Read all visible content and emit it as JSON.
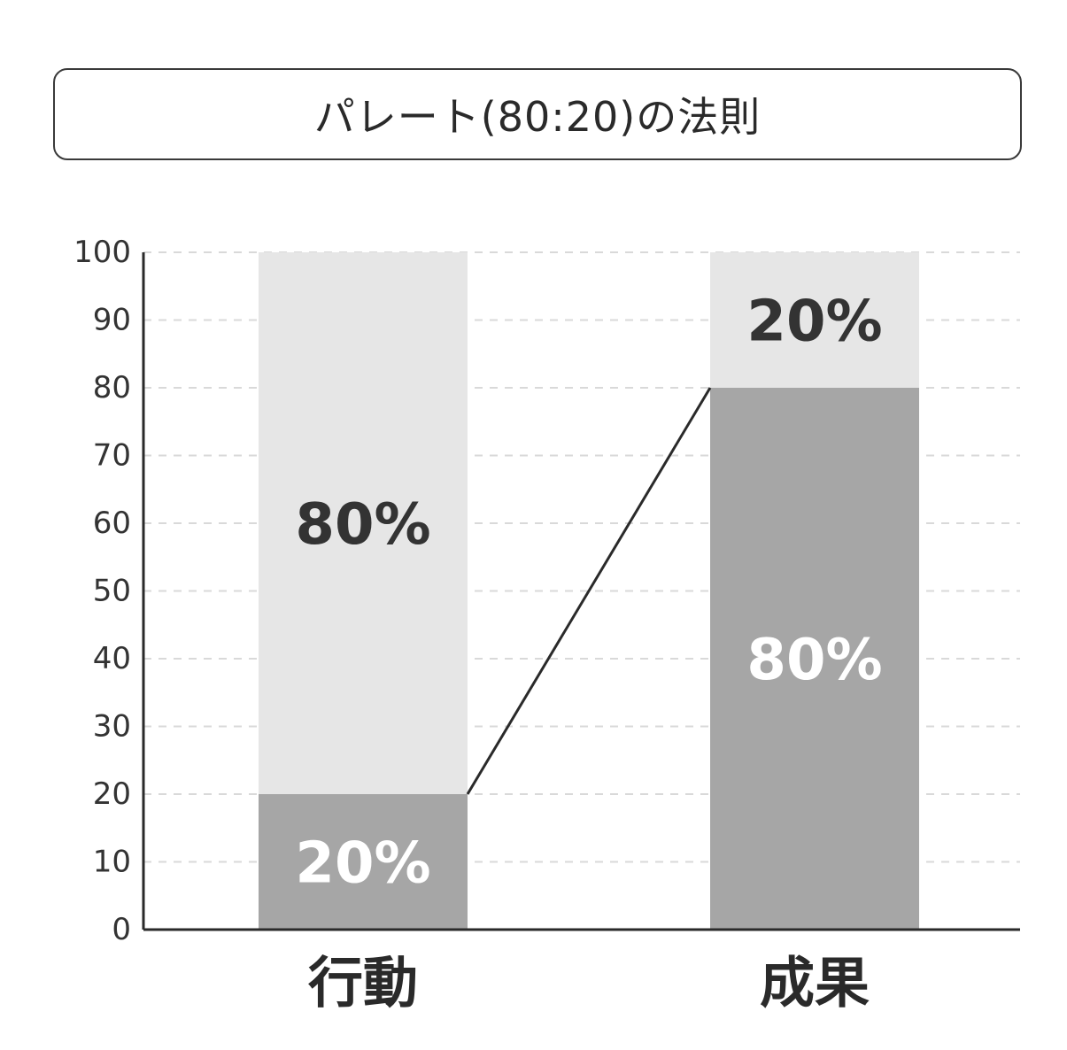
{
  "title": "パレート(80:20)の法則",
  "chart_data": {
    "type": "bar",
    "stacked": true,
    "categories": [
      "行動",
      "成果"
    ],
    "series": [
      {
        "values": [
          20,
          80
        ],
        "labels": [
          "20%",
          "80%"
        ],
        "color": "#a6a6a6",
        "label_color": "#ffffff"
      },
      {
        "values": [
          80,
          20
        ],
        "labels": [
          "80%",
          "20%"
        ],
        "color": "#e6e6e6",
        "label_color": "#333333"
      }
    ],
    "connector": {
      "from": {
        "category": "行動",
        "y": 20
      },
      "to": {
        "category": "成果",
        "y": 80
      }
    },
    "ylim": [
      0,
      100
    ],
    "yticks": [
      "0",
      "10",
      "20",
      "30",
      "40",
      "50",
      "60",
      "70",
      "80",
      "90",
      "100"
    ],
    "grid": true,
    "legend": "none",
    "colors": {
      "axis": "#2a2a2a",
      "grid": "#d9d9d9",
      "connector": "#2a2a2a"
    }
  }
}
